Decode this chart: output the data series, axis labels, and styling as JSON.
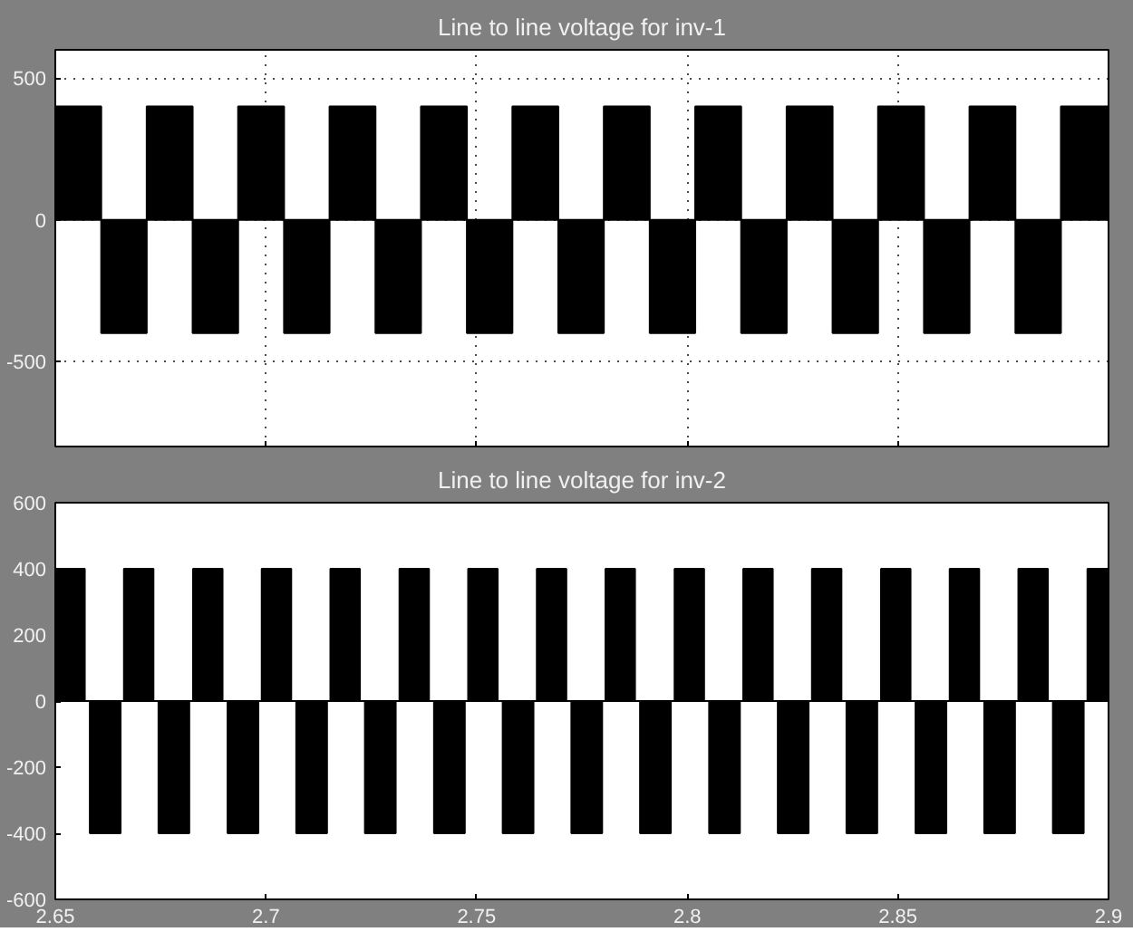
{
  "chart_data": [
    {
      "type": "area",
      "title": "Line to line voltage for inv-1",
      "xlim": [
        2.65,
        2.9
      ],
      "ylim": [
        -800,
        600
      ],
      "xticks": [
        2.65,
        2.7,
        2.75,
        2.8,
        2.85,
        2.9
      ],
      "yticks": [
        -500,
        0,
        500
      ],
      "grid": true,
      "tick_labels": "y",
      "line_style": "dotted",
      "series": [
        {
          "color": "#000000",
          "x": [
            2.65,
            2.65,
            2.6609,
            2.6609,
            2.6717,
            2.6717,
            2.6826,
            2.6826,
            2.6934,
            2.6934,
            2.7043,
            2.7043,
            2.7151,
            2.7151,
            2.726,
            2.726,
            2.7368,
            2.7368,
            2.7477,
            2.7477,
            2.7585,
            2.7585,
            2.7694,
            2.7694,
            2.7802,
            2.7802,
            2.7911,
            2.7911,
            2.8019,
            2.8019,
            2.8128,
            2.8128,
            2.8236,
            2.8236,
            2.8345,
            2.8345,
            2.8453,
            2.8453,
            2.8562,
            2.8562,
            2.867,
            2.867,
            2.8779,
            2.8779,
            2.8887,
            2.8887,
            2.9
          ],
          "values": [
            0,
            400,
            400,
            -400,
            -400,
            400,
            400,
            -400,
            -400,
            400,
            400,
            -400,
            -400,
            400,
            400,
            -400,
            -400,
            400,
            400,
            -400,
            -400,
            400,
            400,
            -400,
            -400,
            400,
            400,
            -400,
            -400,
            400,
            400,
            -400,
            -400,
            400,
            400,
            -400,
            -400,
            400,
            400,
            -400,
            -400,
            400,
            400,
            -400,
            -400,
            400,
            400
          ]
        }
      ]
    },
    {
      "type": "area",
      "title": "Line to line voltage for inv-2",
      "xlim": [
        2.65,
        2.9
      ],
      "ylim": [
        -600,
        600
      ],
      "xticks": [
        2.65,
        2.7,
        2.75,
        2.8,
        2.85,
        2.9
      ],
      "yticks": [
        -600,
        -400,
        -200,
        0,
        200,
        400,
        600
      ],
      "grid": false,
      "series": [
        {
          "color": "#000000",
          "x": [
            2.65,
            2.65,
            2.657,
            2.657,
            2.6582,
            2.6582,
            2.6655,
            2.6655,
            2.6663,
            2.6663,
            2.6733,
            2.6733,
            2.6745,
            2.6745,
            2.6818,
            2.6818,
            2.6827,
            2.6827,
            2.6897,
            2.6897,
            2.6909,
            2.6909,
            2.6982,
            2.6982,
            2.699,
            2.699,
            2.706,
            2.706,
            2.7072,
            2.7072,
            2.7145,
            2.7145,
            2.7153,
            2.7153,
            2.7223,
            2.7223,
            2.7235,
            2.7235,
            2.7308,
            2.7308,
            2.7317,
            2.7317,
            2.7387,
            2.7387,
            2.7399,
            2.7399,
            2.7472,
            2.7472,
            2.748,
            2.748,
            2.755,
            2.755,
            2.7562,
            2.7562,
            2.7635,
            2.7635,
            2.7643,
            2.7643,
            2.7713,
            2.7713,
            2.7725,
            2.7725,
            2.7798,
            2.7798,
            2.7806,
            2.7806,
            2.7876,
            2.7876,
            2.7888,
            2.7888,
            2.7961,
            2.7961,
            2.797,
            2.797,
            2.804,
            2.804,
            2.8052,
            2.8052,
            2.8125,
            2.8125,
            2.8133,
            2.8133,
            2.8203,
            2.8203,
            2.8215,
            2.8215,
            2.8288,
            2.8288,
            2.8296,
            2.8296,
            2.8366,
            2.8366,
            2.8378,
            2.8378,
            2.8451,
            2.8451,
            2.846,
            2.846,
            2.853,
            2.853,
            2.8542,
            2.8542,
            2.8615,
            2.8615,
            2.8623,
            2.8623,
            2.8693,
            2.8693,
            2.8705,
            2.8705,
            2.8778,
            2.8778,
            2.8786,
            2.8786,
            2.8856,
            2.8856,
            2.8868,
            2.8868,
            2.8941,
            2.8941,
            2.895,
            2.895,
            2.9
          ],
          "values": [
            0,
            400,
            400,
            0,
            0,
            -400,
            -400,
            0,
            0,
            400,
            400,
            0,
            0,
            -400,
            -400,
            0,
            0,
            400,
            400,
            0,
            0,
            -400,
            -400,
            0,
            0,
            400,
            400,
            0,
            0,
            -400,
            -400,
            0,
            0,
            400,
            400,
            0,
            0,
            -400,
            -400,
            0,
            0,
            400,
            400,
            0,
            0,
            -400,
            -400,
            0,
            0,
            400,
            400,
            0,
            0,
            -400,
            -400,
            0,
            0,
            400,
            400,
            0,
            0,
            -400,
            -400,
            0,
            0,
            400,
            400,
            0,
            0,
            -400,
            -400,
            0,
            0,
            400,
            400,
            0,
            0,
            -400,
            -400,
            0,
            0,
            400,
            400,
            0,
            0,
            -400,
            -400,
            0,
            0,
            400,
            400,
            0,
            0,
            -400,
            -400,
            0,
            0,
            400,
            400,
            0,
            0,
            -400,
            -400,
            0,
            0,
            400,
            400,
            0,
            0,
            -400,
            -400,
            0,
            0,
            400,
            400,
            0,
            0,
            -400,
            -400,
            0,
            0,
            400,
            400
          ]
        }
      ]
    }
  ]
}
